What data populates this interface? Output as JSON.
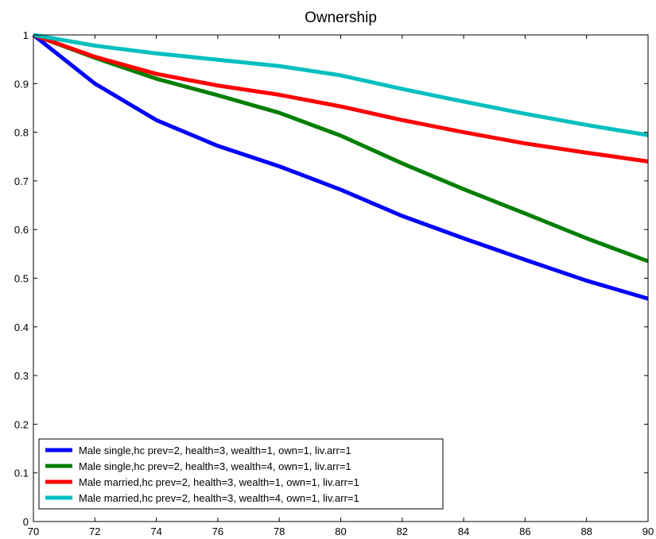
{
  "chart_data": {
    "type": "line",
    "title": "Ownership",
    "xlabel": "",
    "ylabel": "",
    "xlim": [
      70,
      90
    ],
    "ylim": [
      0,
      1
    ],
    "xticks": [
      70,
      72,
      74,
      76,
      78,
      80,
      82,
      84,
      86,
      88,
      90
    ],
    "yticks": [
      0,
      0.1,
      0.2,
      0.3,
      0.4,
      0.5,
      0.6,
      0.7,
      0.8,
      0.9,
      1
    ],
    "grid": false,
    "legend_position": "bottom-left",
    "x": [
      70,
      72,
      74,
      76,
      78,
      80,
      82,
      84,
      86,
      88,
      90
    ],
    "series": [
      {
        "name": "Male single,hc prev=2, health=3, wealth=1, own=1, liv.arr=1",
        "color": "#0000ff",
        "values": [
          1.0,
          0.9,
          0.825,
          0.772,
          0.73,
          0.682,
          0.628,
          0.582,
          0.538,
          0.495,
          0.458
        ]
      },
      {
        "name": "Male single,hc prev=2, health=3, wealth=4, own=1, liv.arr=1",
        "color": "#007f00",
        "values": [
          1.0,
          0.953,
          0.91,
          0.876,
          0.84,
          0.793,
          0.736,
          0.683,
          0.633,
          0.582,
          0.535
        ]
      },
      {
        "name": "Male married,hc prev=2, health=3, wealth=1, own=1, liv.arr=1",
        "color": "#ff0000",
        "values": [
          1.0,
          0.955,
          0.92,
          0.896,
          0.877,
          0.853,
          0.825,
          0.8,
          0.777,
          0.758,
          0.74
        ]
      },
      {
        "name": "Male married,hc prev=2, health=3, wealth=4, own=1, liv.arr=1",
        "color": "#00bfbf",
        "values": [
          1.0,
          0.978,
          0.962,
          0.949,
          0.936,
          0.917,
          0.889,
          0.863,
          0.838,
          0.815,
          0.794
        ]
      }
    ]
  }
}
